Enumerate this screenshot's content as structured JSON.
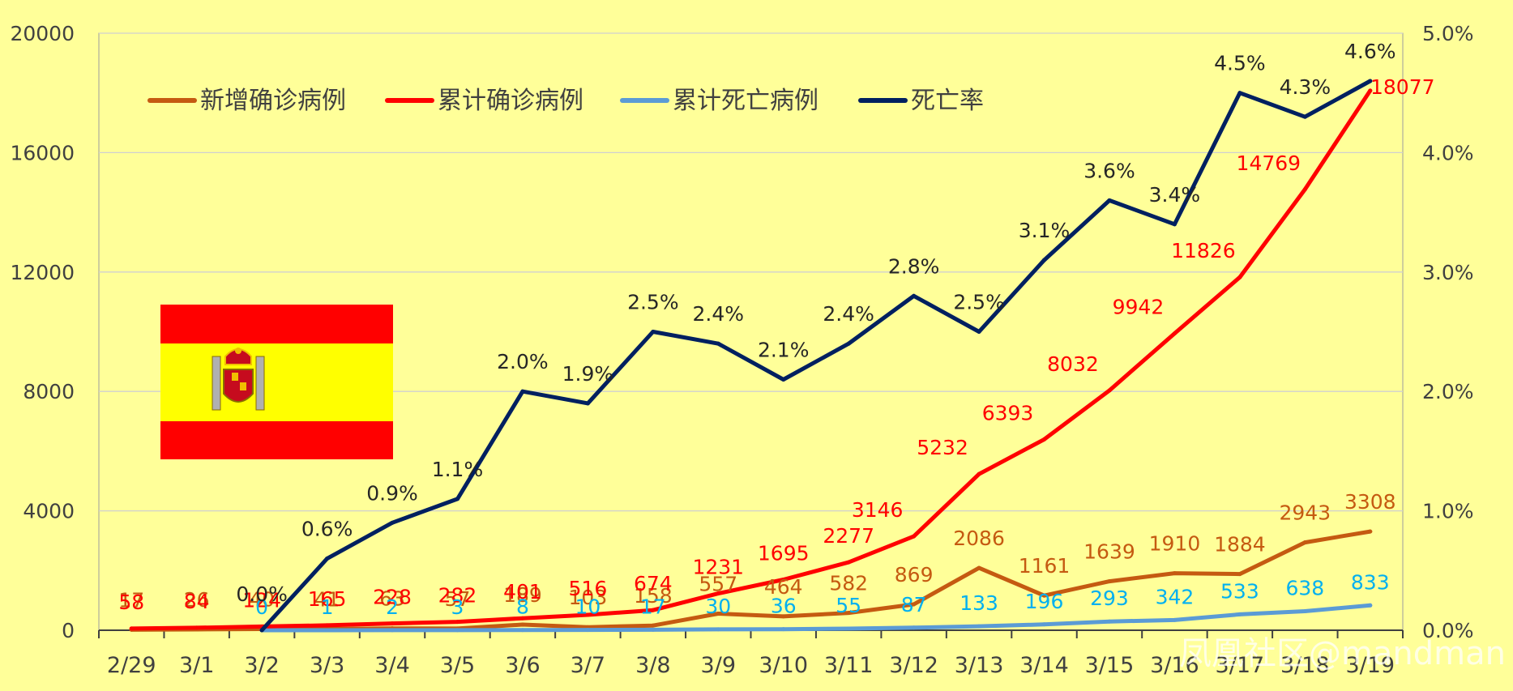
{
  "chart_data": {
    "type": "line",
    "categories": [
      "2/29",
      "3/1",
      "3/2",
      "3/3",
      "3/4",
      "3/5",
      "3/6",
      "3/7",
      "3/8",
      "3/9",
      "3/10",
      "3/11",
      "3/12",
      "3/13",
      "3/14",
      "3/15",
      "3/16",
      "3/17",
      "3/18",
      "3/19"
    ],
    "y_left": {
      "ylim": [
        0,
        20000
      ],
      "ticks": [
        "0",
        "4000",
        "8000",
        "12000",
        "16000",
        "20000"
      ],
      "tick_values": [
        0,
        4000,
        8000,
        12000,
        16000,
        20000
      ]
    },
    "y_right": {
      "ylim": [
        0,
        5.0
      ],
      "ticks": [
        "0.0%",
        "1.0%",
        "2.0%",
        "3.0%",
        "4.0%",
        "5.0%"
      ],
      "tick_values": [
        0,
        1,
        2,
        3,
        4,
        5
      ]
    },
    "grid": true,
    "legend_position": "top-left",
    "series": [
      {
        "name": "新增确诊病例",
        "axis": "left",
        "color": "#C55A11",
        "values": [
          17,
          26,
          40,
          41,
          63,
          57,
          189,
          103,
          158,
          557,
          464,
          582,
          869,
          2086,
          1161,
          1639,
          1910,
          1884,
          2943,
          3308
        ],
        "labels": [
          "17",
          "26",
          "40",
          "41",
          "63",
          "57",
          "189",
          "103",
          "158",
          "557",
          "464",
          "582",
          "869",
          "2086",
          "1161",
          "1639",
          "1910",
          "1884",
          "2943",
          "3308"
        ]
      },
      {
        "name": "累计确诊病例",
        "axis": "left",
        "color": "#FF0000",
        "values": [
          58,
          84,
          124,
          165,
          228,
          282,
          401,
          516,
          674,
          1231,
          1695,
          2277,
          3146,
          5232,
          6393,
          8032,
          9942,
          11826,
          14769,
          18077
        ],
        "labels": [
          "58",
          "84",
          "124",
          "165",
          "228",
          "282",
          "401",
          "516",
          "674",
          "1231",
          "1695",
          "2277",
          "3146",
          "5232",
          "6393",
          "8032",
          "9942",
          "11826",
          "14769",
          "18077"
        ]
      },
      {
        "name": "累计死亡病例",
        "axis": "left",
        "color": "#5B9BD5",
        "label_color": "#00B0F0",
        "values": [
          null,
          null,
          0,
          1,
          2,
          3,
          8,
          10,
          17,
          30,
          36,
          55,
          87,
          133,
          196,
          293,
          342,
          533,
          638,
          833
        ],
        "labels": [
          "",
          "",
          "0",
          "1",
          "2",
          "3",
          "8",
          "10",
          "17",
          "30",
          "36",
          "55",
          "87",
          "133",
          "196",
          "293",
          "342",
          "533",
          "638",
          "833"
        ]
      },
      {
        "name": "死亡率",
        "axis": "right",
        "color": "#002060",
        "values": [
          null,
          null,
          0.0,
          0.6,
          0.9,
          1.1,
          2.0,
          1.9,
          2.5,
          2.4,
          2.1,
          2.4,
          2.8,
          2.5,
          3.1,
          3.6,
          3.4,
          4.5,
          4.3,
          4.6
        ],
        "labels": [
          "",
          "",
          "0.0%",
          "0.6%",
          "0.9%",
          "1.1%",
          "2.0%",
          "1.9%",
          "2.5%",
          "2.4%",
          "2.1%",
          "2.4%",
          "2.8%",
          "2.5%",
          "3.1%",
          "3.6%",
          "3.4%",
          "4.5%",
          "4.3%",
          "4.6%"
        ]
      }
    ]
  },
  "flag": {
    "name": "Spain",
    "colors": {
      "red": "#FF0000",
      "yellow": "#FFFF00"
    }
  },
  "watermark": {
    "text": "凤凰社区@mandman"
  }
}
